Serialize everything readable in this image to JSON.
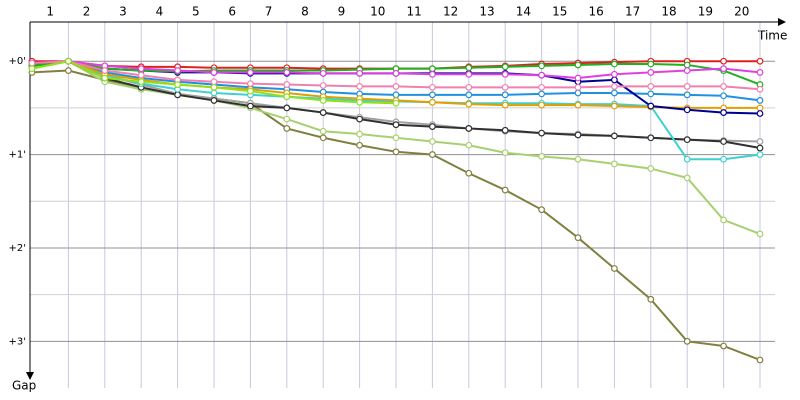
{
  "chart_data": {
    "type": "line",
    "x_label": "Time",
    "y_label": "Gap",
    "x": [
      0,
      1,
      2,
      3,
      4,
      5,
      6,
      7,
      8,
      9,
      10,
      11,
      12,
      13,
      14,
      15,
      16,
      17,
      18,
      19,
      20
    ],
    "xlim": [
      0,
      20
    ],
    "xticks": [
      {
        "value": 0.5,
        "label": "1"
      },
      {
        "value": 1.5,
        "label": "2"
      },
      {
        "value": 2.5,
        "label": "3"
      },
      {
        "value": 3.5,
        "label": "4"
      },
      {
        "value": 4.5,
        "label": "5"
      },
      {
        "value": 5.5,
        "label": "6"
      },
      {
        "value": 6.5,
        "label": "7"
      },
      {
        "value": 7.5,
        "label": "8"
      },
      {
        "value": 8.5,
        "label": "9"
      },
      {
        "value": 9.5,
        "label": "10"
      },
      {
        "value": 10.5,
        "label": "11"
      },
      {
        "value": 11.5,
        "label": "12"
      },
      {
        "value": 12.5,
        "label": "13"
      },
      {
        "value": 13.5,
        "label": "14"
      },
      {
        "value": 14.5,
        "label": "15"
      },
      {
        "value": 15.5,
        "label": "16"
      },
      {
        "value": 16.5,
        "label": "17"
      },
      {
        "value": 17.5,
        "label": "18"
      },
      {
        "value": 18.5,
        "label": "19"
      },
      {
        "value": 19.5,
        "label": "20"
      }
    ],
    "ylim": [
      -0.42,
      3.5
    ],
    "yticks": [
      {
        "value": 0,
        "label": "+0'"
      },
      {
        "value": 1,
        "label": "+1'"
      },
      {
        "value": 2,
        "label": "+2'"
      },
      {
        "value": 3,
        "label": "+3'"
      }
    ],
    "minor_gridlines": [
      0.5,
      1.5,
      2.5
    ],
    "y_inverted": true,
    "series": [
      {
        "color": "#808040",
        "values": [
          0.12,
          0.1,
          0.2,
          0.3,
          0.35,
          0.4,
          0.45,
          0.72,
          0.82,
          0.9,
          0.97,
          1.0,
          1.2,
          1.38,
          1.59,
          1.89,
          2.22,
          2.55,
          3.0,
          3.05,
          3.2
        ]
      },
      {
        "color": "#a8d070",
        "values": [
          0.08,
          0,
          0.22,
          0.3,
          0.36,
          0.42,
          0.5,
          0.62,
          0.75,
          0.78,
          0.82,
          0.86,
          0.9,
          0.98,
          1.02,
          1.05,
          1.1,
          1.15,
          1.25,
          1.7,
          1.85
        ]
      },
      {
        "color": "#a0a0a0",
        "values": [
          0.05,
          0,
          0.15,
          0.25,
          0.35,
          0.4,
          0.45,
          0.5,
          0.55,
          0.6,
          0.65,
          0.68,
          0.72,
          0.75,
          0.77,
          0.78,
          0.8,
          0.82,
          0.84,
          0.85,
          0.86
        ]
      },
      {
        "color": "#303030",
        "values": [
          0.05,
          0,
          0.18,
          0.28,
          0.36,
          0.42,
          0.48,
          0.5,
          0.55,
          0.62,
          0.68,
          0.7,
          0.72,
          0.74,
          0.77,
          0.79,
          0.8,
          0.82,
          0.84,
          0.86,
          0.93
        ]
      },
      {
        "color": "#40d0d0",
        "values": [
          0.02,
          0,
          0.15,
          0.24,
          0.3,
          0.34,
          0.36,
          0.38,
          0.4,
          0.42,
          0.43,
          0.44,
          0.45,
          0.45,
          0.45,
          0.46,
          0.46,
          0.48,
          1.05,
          1.05,
          1.0
        ]
      },
      {
        "color": "#2090e0",
        "values": [
          0.02,
          0,
          0.12,
          0.18,
          0.22,
          0.25,
          0.28,
          0.3,
          0.33,
          0.35,
          0.36,
          0.36,
          0.36,
          0.36,
          0.35,
          0.34,
          0.34,
          0.35,
          0.36,
          0.37,
          0.42
        ]
      },
      {
        "color": "#e0a000",
        "values": [
          0.02,
          0,
          0.14,
          0.2,
          0.25,
          0.28,
          0.3,
          0.34,
          0.38,
          0.4,
          0.42,
          0.44,
          0.46,
          0.47,
          0.47,
          0.47,
          0.48,
          0.49,
          0.5,
          0.5,
          0.5
        ]
      },
      {
        "color": "#000090",
        "values": [
          0.02,
          0,
          0.08,
          0.1,
          0.12,
          0.12,
          0.13,
          0.13,
          0.13,
          0.13,
          0.13,
          0.13,
          0.13,
          0.13,
          0.15,
          0.22,
          0.2,
          0.48,
          0.52,
          0.55,
          0.56
        ]
      },
      {
        "color": "#e02020",
        "values": [
          0,
          0,
          0.05,
          0.06,
          0.06,
          0.07,
          0.07,
          0.07,
          0.08,
          0.08,
          0.08,
          0.08,
          0.06,
          0.05,
          0.03,
          0.02,
          0.01,
          0.0,
          0.0,
          0.0,
          0.0
        ]
      },
      {
        "color": "#20b020",
        "values": [
          0.05,
          0,
          0.08,
          0.1,
          0.11,
          0.1,
          0.1,
          0.1,
          0.1,
          0.09,
          0.08,
          0.08,
          0.07,
          0.06,
          0.05,
          0.04,
          0.03,
          0.03,
          0.04,
          0.1,
          0.25
        ]
      },
      {
        "color": "#e040e0",
        "values": [
          0.02,
          0,
          0.05,
          0.08,
          0.1,
          0.12,
          0.12,
          0.12,
          0.13,
          0.13,
          0.13,
          0.14,
          0.14,
          0.14,
          0.15,
          0.18,
          0.14,
          0.12,
          0.1,
          0.08,
          0.12
        ]
      },
      {
        "color": "#f080b0",
        "values": [
          0.02,
          0,
          0.1,
          0.15,
          0.2,
          0.22,
          0.24,
          0.25,
          0.26,
          0.27,
          0.27,
          0.28,
          0.28,
          0.28,
          0.28,
          0.28,
          0.27,
          0.27,
          0.27,
          0.27,
          0.3
        ]
      },
      {
        "color": "#90e020",
        "values": [
          0.08,
          0,
          0.18,
          0.22,
          0.25,
          0.28,
          0.32,
          0.38,
          0.42,
          0.44,
          0.45,
          null,
          null,
          null,
          null,
          null,
          null,
          null,
          null,
          null,
          null
        ]
      }
    ]
  }
}
